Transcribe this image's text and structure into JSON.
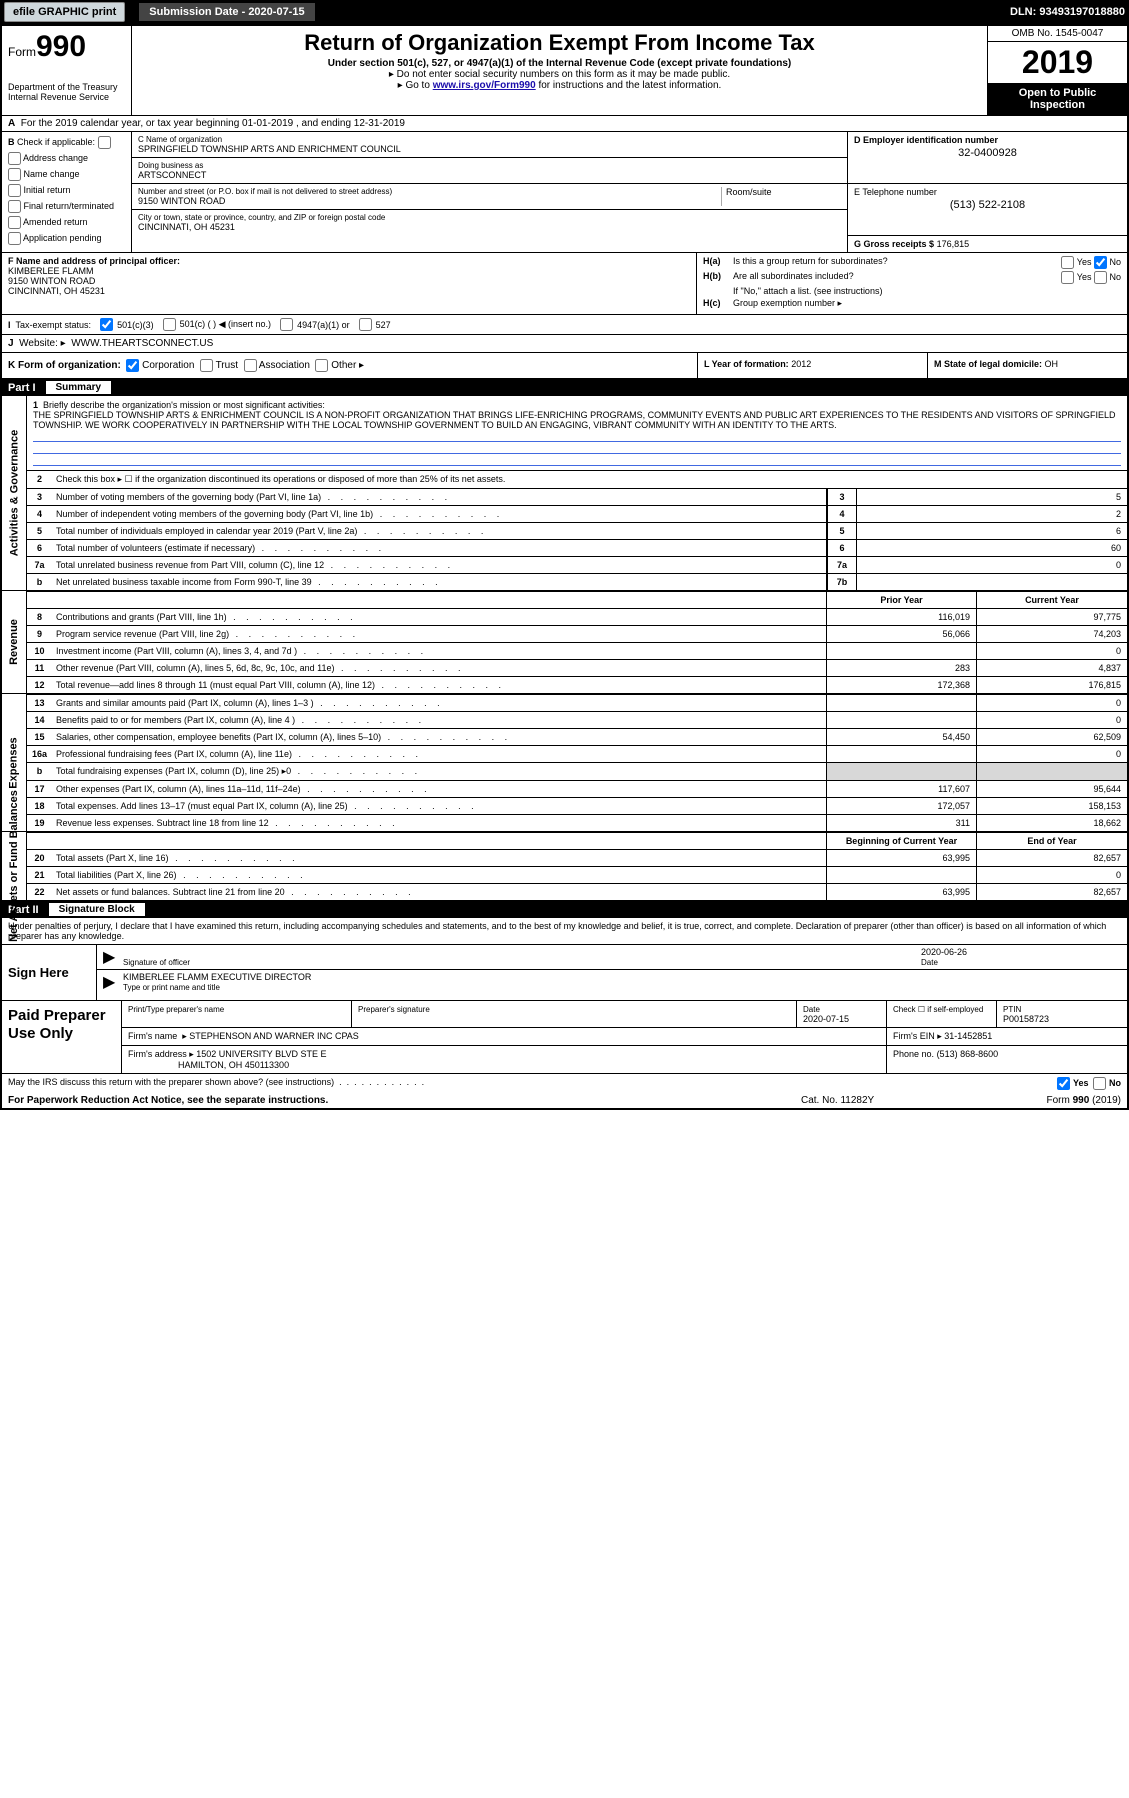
{
  "topbar": {
    "efile": "efile GRAPHIC print",
    "sub_date_label": "Submission Date - 2020-07-15",
    "dln": "DLN: 93493197018880"
  },
  "header": {
    "form_prefix": "Form",
    "form_no": "990",
    "dept": "Department of the Treasury",
    "irs": "Internal Revenue Service",
    "title": "Return of Organization Exempt From Income Tax",
    "sub1": "Under section 501(c), 527, or 4947(a)(1) of the Internal Revenue Code (except private foundations)",
    "sub2_pre": "▸ Do not enter social security numbers on this form as it may be made public.",
    "sub3_pre": "▸ Go to ",
    "sub3_link": "www.irs.gov/Form990",
    "sub3_post": " for instructions and the latest information.",
    "omb": "OMB No. 1545-0047",
    "year": "2019",
    "open": "Open to Public Inspection"
  },
  "row_a": "For the 2019 calendar year, or tax year beginning 01-01-2019          , and ending 12-31-2019",
  "block_b": {
    "label": "Check if applicable:",
    "opts": [
      "Address change",
      "Name change",
      "Initial return",
      "Final return/terminated",
      "Amended return",
      "Application pending"
    ]
  },
  "block_c": {
    "name_lbl": "C Name of organization",
    "name": "SPRINGFIELD TOWNSHIP ARTS AND ENRICHMENT COUNCIL",
    "dba_lbl": "Doing business as",
    "dba": "ARTSCONNECT",
    "addr_lbl": "Number and street (or P.O. box if mail is not delivered to street address)",
    "addr": "9150 WINTON ROAD",
    "room_lbl": "Room/suite",
    "city_lbl": "City or town, state or province, country, and ZIP or foreign postal code",
    "city": "CINCINNATI, OH   45231"
  },
  "block_d": {
    "lbl": "D Employer identification number",
    "val": "32-0400928"
  },
  "block_e": {
    "lbl": "E Telephone number",
    "val": "(513) 522-2108"
  },
  "block_g": {
    "lbl": "G Gross receipts $",
    "val": "176,815"
  },
  "block_f": {
    "lbl": "F  Name and address of principal officer:",
    "name": "KIMBERLEE FLAMM",
    "addr": "9150 WINTON ROAD",
    "city": "CINCINNATI, OH   45231"
  },
  "block_h": {
    "a_lbl": "H(a)",
    "a_txt": "Is this a group return for subordinates?",
    "a_yes": "Yes",
    "a_no": "No",
    "b_lbl": "H(b)",
    "b_txt": "Are all subordinates included?",
    "b_yes": "Yes",
    "b_no": "No",
    "b_note": "If \"No,\" attach a list. (see instructions)",
    "c_lbl": "H(c)",
    "c_txt": "Group exemption number ▸"
  },
  "row_tax": {
    "i_lbl": "I",
    "i_txt": "Tax-exempt status:",
    "o1": "501(c)(3)",
    "o2": "501(c) (  ) ◀ (insert no.)",
    "o3": "4947(a)(1) or",
    "o4": "527"
  },
  "row_j": {
    "lbl": "J",
    "txt": "Website: ▸",
    "val": "WWW.THEARTSCONNECT.US"
  },
  "row_k": {
    "lbl": "K Form of organization:",
    "opts": [
      "Corporation",
      "Trust",
      "Association",
      "Other ▸"
    ]
  },
  "row_l": {
    "lbl": "L Year of formation:",
    "val": "2012"
  },
  "row_m": {
    "lbl": "M State of legal domicile:",
    "val": "OH"
  },
  "part1": {
    "num": "Part I",
    "title": "Summary"
  },
  "mission": {
    "lbl": "Briefly describe the organization's mission or most significant activities:",
    "txt": "THE SPRINGFIELD TOWNSHIP ARTS & ENRICHMENT COUNCIL IS A NON-PROFIT ORGANIZATION THAT BRINGS LIFE-ENRICHING PROGRAMS, COMMUNITY EVENTS AND PUBLIC ART EXPERIENCES TO THE RESIDENTS AND VISITORS OF SPRINGFIELD TOWNSHIP. WE WORK COOPERATIVELY IN PARTNERSHIP WITH THE LOCAL TOWNSHIP GOVERNMENT TO BUILD AN ENGAGING, VIBRANT COMMUNITY WITH AN IDENTITY TO THE ARTS."
  },
  "gov_rows": [
    {
      "n": "2",
      "desc": "Check this box ▸ ☐ if the organization discontinued its operations or disposed of more than 25% of its net assets.",
      "box": "",
      "val": ""
    },
    {
      "n": "3",
      "desc": "Number of voting members of the governing body (Part VI, line 1a)",
      "box": "3",
      "val": "5"
    },
    {
      "n": "4",
      "desc": "Number of independent voting members of the governing body (Part VI, line 1b)",
      "box": "4",
      "val": "2"
    },
    {
      "n": "5",
      "desc": "Total number of individuals employed in calendar year 2019 (Part V, line 2a)",
      "box": "5",
      "val": "6"
    },
    {
      "n": "6",
      "desc": "Total number of volunteers (estimate if necessary)",
      "box": "6",
      "val": "60"
    },
    {
      "n": "7a",
      "desc": "Total unrelated business revenue from Part VIII, column (C), line 12",
      "box": "7a",
      "val": "0"
    },
    {
      "n": "b",
      "desc": "Net unrelated business taxable income from Form 990-T, line 39",
      "box": "7b",
      "val": ""
    }
  ],
  "rev_hdr": {
    "pc": "Prior Year",
    "cc": "Current Year"
  },
  "rev_rows": [
    {
      "n": "8",
      "desc": "Contributions and grants (Part VIII, line 1h)",
      "pc": "116,019",
      "cc": "97,775"
    },
    {
      "n": "9",
      "desc": "Program service revenue (Part VIII, line 2g)",
      "pc": "56,066",
      "cc": "74,203"
    },
    {
      "n": "10",
      "desc": "Investment income (Part VIII, column (A), lines 3, 4, and 7d )",
      "pc": "",
      "cc": "0"
    },
    {
      "n": "11",
      "desc": "Other revenue (Part VIII, column (A), lines 5, 6d, 8c, 9c, 10c, and 11e)",
      "pc": "283",
      "cc": "4,837"
    },
    {
      "n": "12",
      "desc": "Total revenue—add lines 8 through 11 (must equal Part VIII, column (A), line 12)",
      "pc": "172,368",
      "cc": "176,815"
    }
  ],
  "exp_rows": [
    {
      "n": "13",
      "desc": "Grants and similar amounts paid (Part IX, column (A), lines 1–3 )",
      "pc": "",
      "cc": "0"
    },
    {
      "n": "14",
      "desc": "Benefits paid to or for members (Part IX, column (A), line 4 )",
      "pc": "",
      "cc": "0"
    },
    {
      "n": "15",
      "desc": "Salaries, other compensation, employee benefits (Part IX, column (A), lines 5–10)",
      "pc": "54,450",
      "cc": "62,509"
    },
    {
      "n": "16a",
      "desc": "Professional fundraising fees (Part IX, column (A), line 11e)",
      "pc": "",
      "cc": "0"
    },
    {
      "n": "b",
      "desc": "Total fundraising expenses (Part IX, column (D), line 25) ▸0",
      "pc": "shade",
      "cc": "shade"
    },
    {
      "n": "17",
      "desc": "Other expenses (Part IX, column (A), lines 11a–11d, 11f–24e)",
      "pc": "117,607",
      "cc": "95,644"
    },
    {
      "n": "18",
      "desc": "Total expenses. Add lines 13–17 (must equal Part IX, column (A), line 25)",
      "pc": "172,057",
      "cc": "158,153"
    },
    {
      "n": "19",
      "desc": "Revenue less expenses. Subtract line 18 from line 12",
      "pc": "311",
      "cc": "18,662"
    }
  ],
  "na_hdr": {
    "pc": "Beginning of Current Year",
    "cc": "End of Year"
  },
  "na_rows": [
    {
      "n": "20",
      "desc": "Total assets (Part X, line 16)",
      "pc": "63,995",
      "cc": "82,657"
    },
    {
      "n": "21",
      "desc": "Total liabilities (Part X, line 26)",
      "pc": "",
      "cc": "0"
    },
    {
      "n": "22",
      "desc": "Net assets or fund balances. Subtract line 21 from line 20",
      "pc": "63,995",
      "cc": "82,657"
    }
  ],
  "vert_labels": {
    "gov": "Activities & Governance",
    "rev": "Revenue",
    "exp": "Expenses",
    "na": "Net Assets or Fund Balances"
  },
  "part2": {
    "num": "Part II",
    "title": "Signature Block"
  },
  "sig": {
    "txt": "Under penalties of perjury, I declare that I have examined this return, including accompanying schedules and statements, and to the best of my knowledge and belief, it is true, correct, and complete. Declaration of preparer (other than officer) is based on all information of which preparer has any knowledge.",
    "here": "Sign Here",
    "officer_lbl": "Signature of officer",
    "date_lbl": "Date",
    "date": "2020-06-26",
    "name": "KIMBERLEE FLAMM  EXECUTIVE DIRECTOR",
    "name_lbl": "Type or print name and title"
  },
  "paid": {
    "title": "Paid Preparer Use Only",
    "h1": "Print/Type preparer's name",
    "h2": "Preparer's signature",
    "h3": "Date",
    "h4": "Check ☐ if self-employed",
    "h5": "PTIN",
    "date": "2020-07-15",
    "ptin": "P00158723",
    "firm_lbl": "Firm's name",
    "firm": "▸ STEPHENSON AND WARNER INC CPAS",
    "ein_lbl": "Firm's EIN ▸",
    "ein": "31-1452851",
    "addr_lbl": "Firm's address ▸",
    "addr": "1502 UNIVERSITY BLVD STE E",
    "addr2": "HAMILTON, OH   450113300",
    "phone_lbl": "Phone no.",
    "phone": "(513) 868-8600"
  },
  "discuss": {
    "txt": "May the IRS discuss this return with the preparer shown above? (see instructions)",
    "yes": "Yes",
    "no": "No"
  },
  "bottom": {
    "l": "For Paperwork Reduction Act Notice, see the separate instructions.",
    "m": "Cat. No. 11282Y",
    "r": "Form 990 (2019)"
  }
}
